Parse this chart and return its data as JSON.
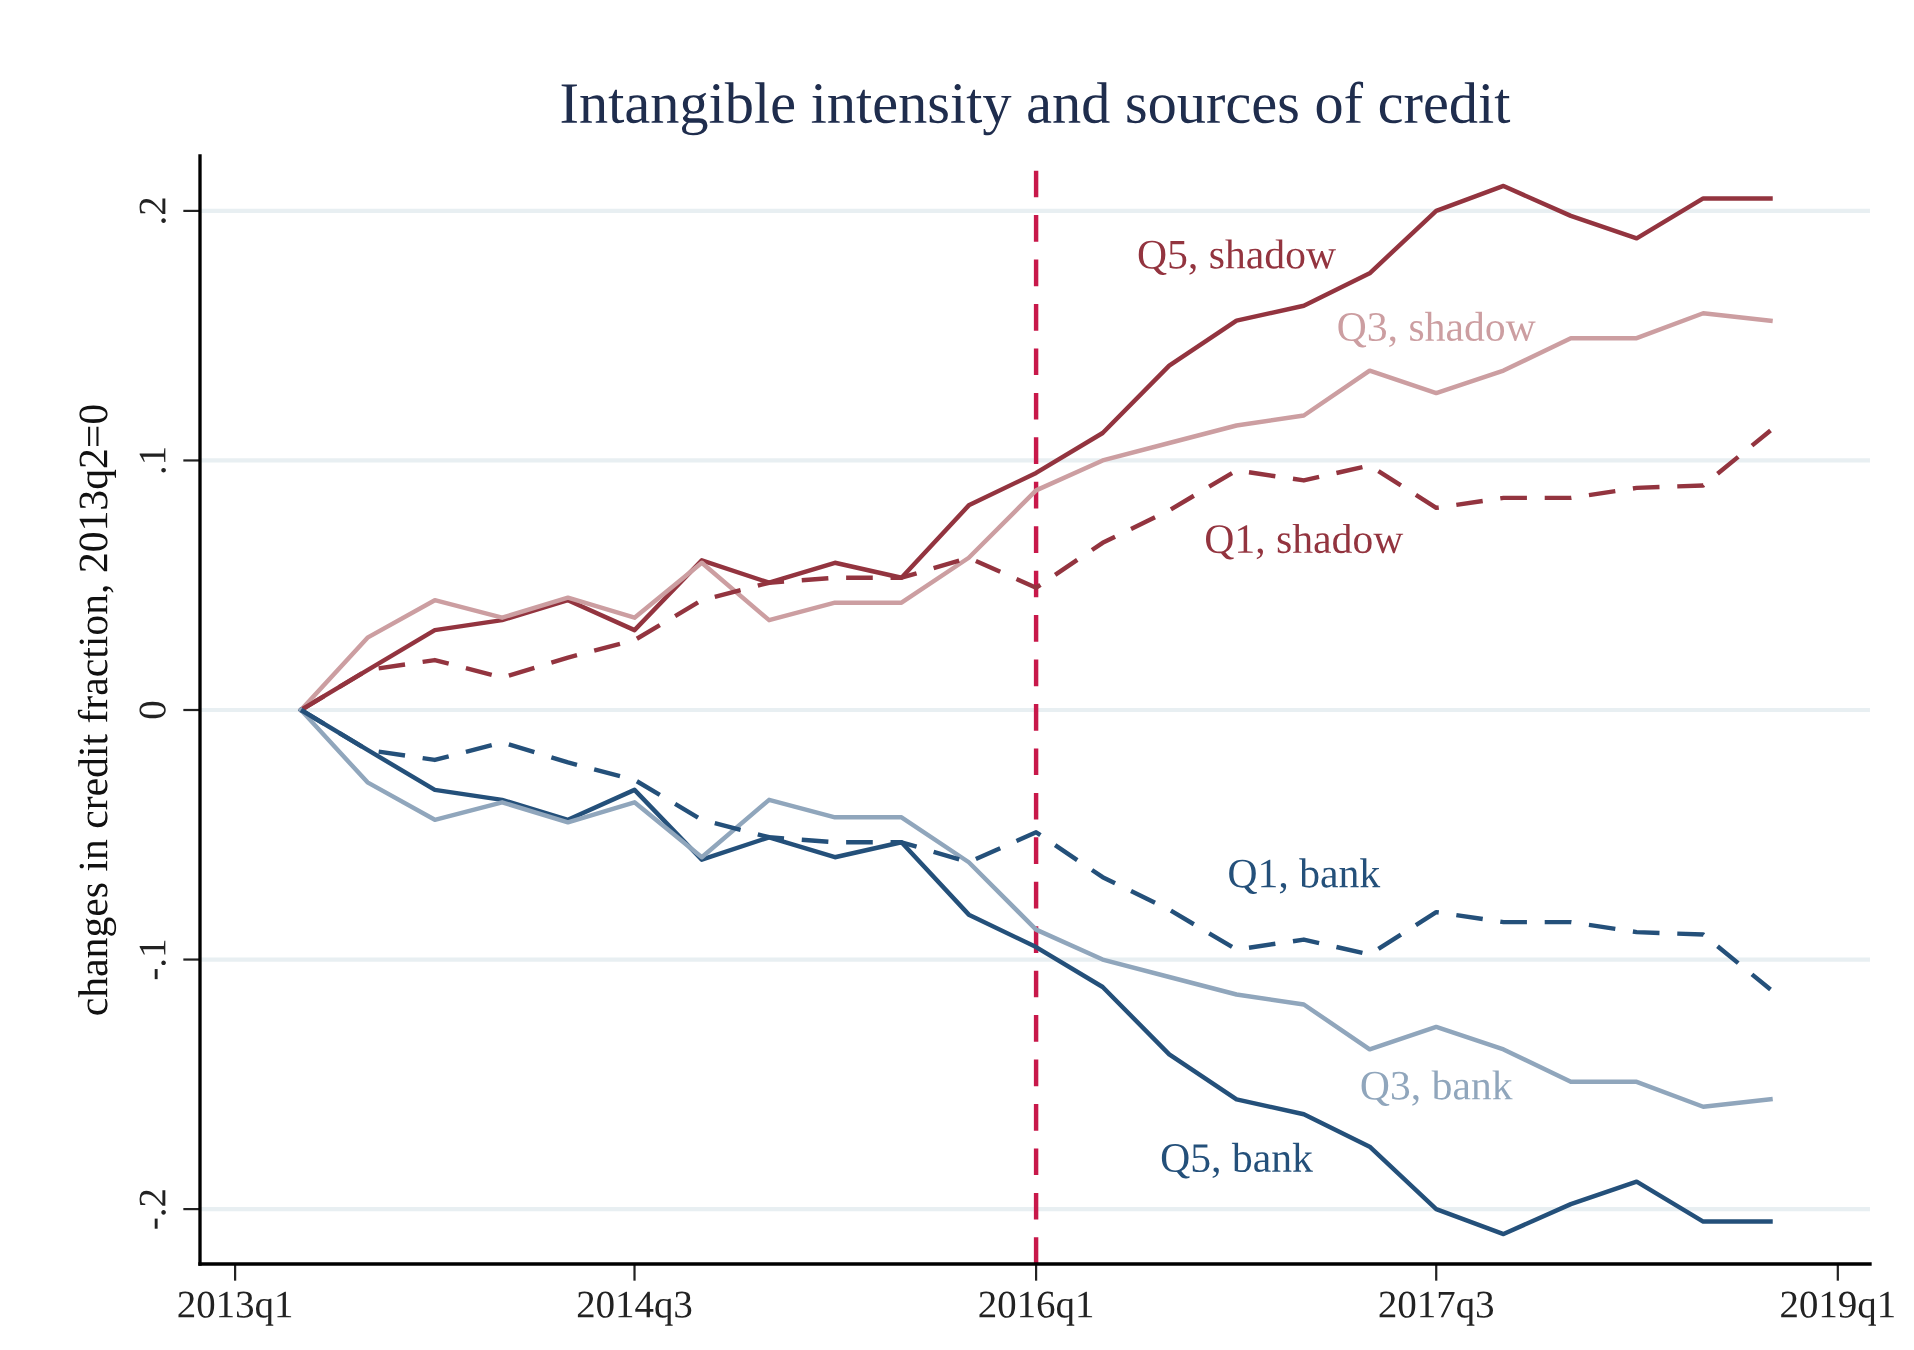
{
  "chart_data": {
    "type": "line",
    "title": "Intangible intensity and sources of credit",
    "ylabel": "changes in credit fraction, 2013q2=0",
    "x": [
      "2013-04",
      "2013-07",
      "2013-10",
      "2014-01",
      "2014-04",
      "2014-07",
      "2014-10",
      "2015-01",
      "2015-04",
      "2015-07",
      "2015-10",
      "2016-01",
      "2016-04",
      "2016-07",
      "2016-10",
      "2017-01",
      "2017-04",
      "2017-07",
      "2017-10",
      "2018-01",
      "2018-04",
      "2018-07",
      "2018-10"
    ],
    "series": [
      {
        "name": "Q5, shadow",
        "color": "#93343f",
        "line_style": "solid",
        "values": [
          0,
          0.016,
          0.032,
          0.036,
          0.044,
          0.032,
          0.06,
          0.051,
          0.059,
          0.053,
          0.082,
          0.095,
          0.111,
          0.138,
          0.156,
          0.162,
          0.175,
          0.2,
          0.21,
          0.198,
          0.189,
          0.205,
          0.205
        ]
      },
      {
        "name": "Q3, shadow",
        "color": "#cc9ea1",
        "line_style": "solid",
        "values": [
          0,
          0.029,
          0.044,
          0.037,
          0.045,
          0.037,
          0.059,
          0.036,
          0.043,
          0.043,
          0.061,
          0.088,
          0.1,
          0.107,
          0.114,
          0.118,
          0.136,
          0.127,
          0.136,
          0.149,
          0.149,
          0.159,
          0.156
        ]
      },
      {
        "name": "Q1, shadow",
        "color": "#93343f",
        "line_style": "dashed",
        "values": [
          0,
          0.016,
          0.02,
          0.013,
          0.021,
          0.028,
          0.044,
          0.051,
          0.053,
          0.053,
          0.061,
          0.049,
          0.067,
          0.08,
          0.096,
          0.092,
          0.098,
          0.081,
          0.085,
          0.085,
          0.089,
          0.09,
          0.112
        ]
      },
      {
        "name": "Q5, bank",
        "color": "#24507a",
        "line_style": "solid",
        "values": [
          0,
          -0.016,
          -0.032,
          -0.036,
          -0.044,
          -0.032,
          -0.06,
          -0.051,
          -0.059,
          -0.053,
          -0.082,
          -0.095,
          -0.111,
          -0.138,
          -0.156,
          -0.162,
          -0.175,
          -0.2,
          -0.21,
          -0.198,
          -0.189,
          -0.205,
          -0.205
        ]
      },
      {
        "name": "Q3, bank",
        "color": "#90a6bc",
        "line_style": "solid",
        "values": [
          0,
          -0.029,
          -0.044,
          -0.037,
          -0.045,
          -0.037,
          -0.059,
          -0.036,
          -0.043,
          -0.043,
          -0.061,
          -0.088,
          -0.1,
          -0.107,
          -0.114,
          -0.118,
          -0.136,
          -0.127,
          -0.136,
          -0.149,
          -0.149,
          -0.159,
          -0.156
        ]
      },
      {
        "name": "Q1, bank",
        "color": "#24507a",
        "line_style": "dashed",
        "values": [
          0,
          -0.016,
          -0.02,
          -0.013,
          -0.021,
          -0.028,
          -0.044,
          -0.051,
          -0.053,
          -0.053,
          -0.061,
          -0.049,
          -0.067,
          -0.08,
          -0.096,
          -0.092,
          -0.098,
          -0.081,
          -0.085,
          -0.085,
          -0.089,
          -0.09,
          -0.112
        ]
      }
    ],
    "xlim": [
      "2012-11-14",
      "2019-02-14"
    ],
    "xticks": [
      {
        "value": "2013-01",
        "label": "2013q1"
      },
      {
        "value": "2014-07",
        "label": "2014q3"
      },
      {
        "value": "2016-01",
        "label": "2016q1"
      },
      {
        "value": "2017-07",
        "label": "2017q3"
      },
      {
        "value": "2019-01",
        "label": "2019q1"
      }
    ],
    "ylim": [
      -0.222,
      0.222
    ],
    "yticks": [
      {
        "value": -0.2,
        "label": "-.2"
      },
      {
        "value": -0.1,
        "label": "-.1"
      },
      {
        "value": 0,
        "label": "0"
      },
      {
        "value": 0.1,
        "label": ".1"
      },
      {
        "value": 0.2,
        "label": ".2"
      }
    ],
    "grid": "y",
    "legend": false,
    "ref_lines": [
      {
        "axis": "x",
        "value": "2016-01",
        "color": "#c8184a",
        "line_style": "dashed"
      }
    ]
  }
}
